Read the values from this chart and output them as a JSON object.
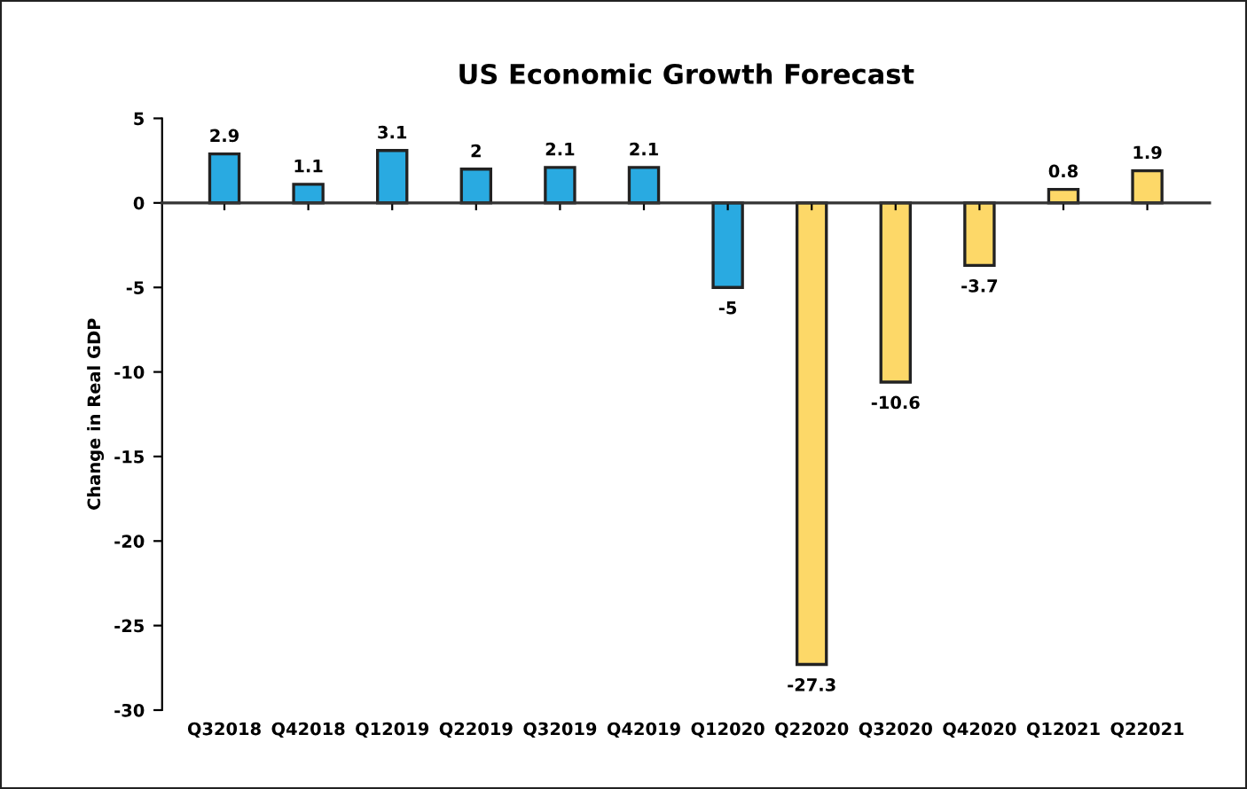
{
  "chart_data": {
    "type": "bar",
    "title": "US Economic Growth Forecast",
    "ylabel": "Change in Real GDP",
    "categories": [
      "Q32018",
      "Q42018",
      "Q12019",
      "Q22019",
      "Q32019",
      "Q42019",
      "Q12020",
      "Q22020",
      "Q32020",
      "Q42020",
      "Q12021",
      "Q22021"
    ],
    "values": [
      2.9,
      1.1,
      3.1,
      2,
      2.1,
      2.1,
      -5,
      -27.3,
      -10.6,
      -3.7,
      0.8,
      1.9
    ],
    "colors": [
      "#29aae1",
      "#29aae1",
      "#29aae1",
      "#29aae1",
      "#29aae1",
      "#29aae1",
      "#29aae1",
      "#fdd868",
      "#fdd868",
      "#fdd868",
      "#fdd868",
      "#fdd868"
    ],
    "ylim": [
      -30,
      5
    ],
    "yticks": [
      -30,
      -25,
      -20,
      -15,
      -10,
      -5,
      0,
      5
    ],
    "data_labels": true
  }
}
